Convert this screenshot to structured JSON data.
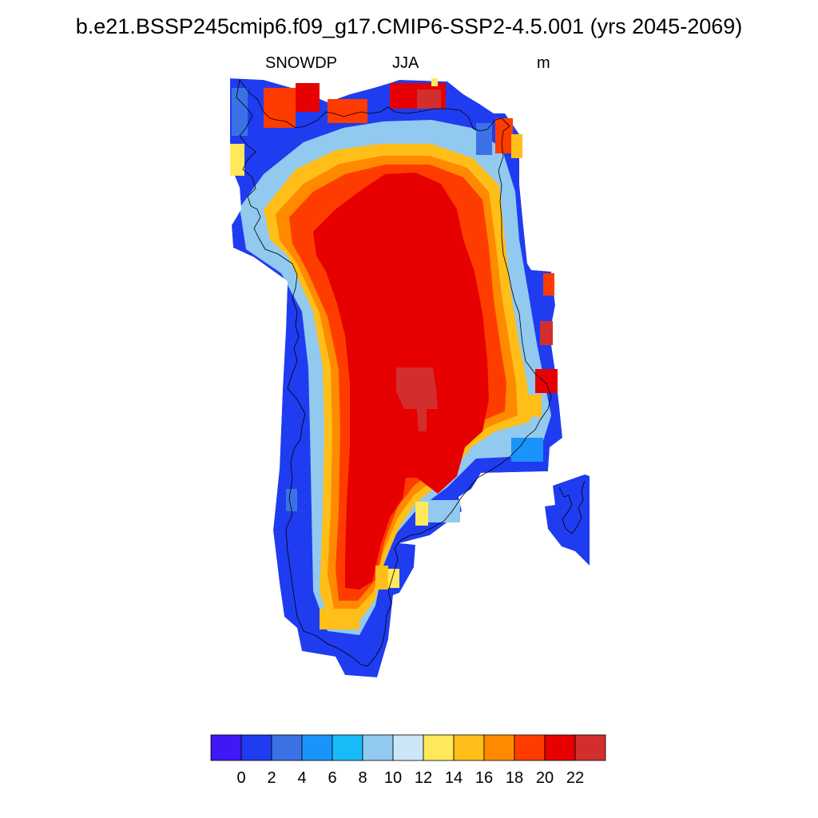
{
  "figure": {
    "title": "b.e21.BSSP245cmip6.f09_g17.CMIP6-SSP2-4.5.001 (yrs 2045-2069)",
    "variable": "SNOWDP",
    "season": "JJA",
    "units": "m"
  },
  "colorbar": {
    "colors": [
      "#4017f5",
      "#1f3cf0",
      "#3a72e6",
      "#1994fb",
      "#18bbf7",
      "#92c9ee",
      "#cce6f8",
      "#ffe95b",
      "#ffbf18",
      "#ff8a00",
      "#ff3c00",
      "#e60000",
      "#d32e2e"
    ],
    "tick_labels": [
      "0",
      "2",
      "4",
      "6",
      "8",
      "10",
      "12",
      "14",
      "16",
      "18",
      "20",
      "22"
    ]
  },
  "map_data": {
    "region": "Greenland",
    "field": "snow depth",
    "interior_value_range": [
      20,
      22
    ],
    "peak_value": ">22",
    "coastal_value_range": [
      0,
      2
    ]
  }
}
